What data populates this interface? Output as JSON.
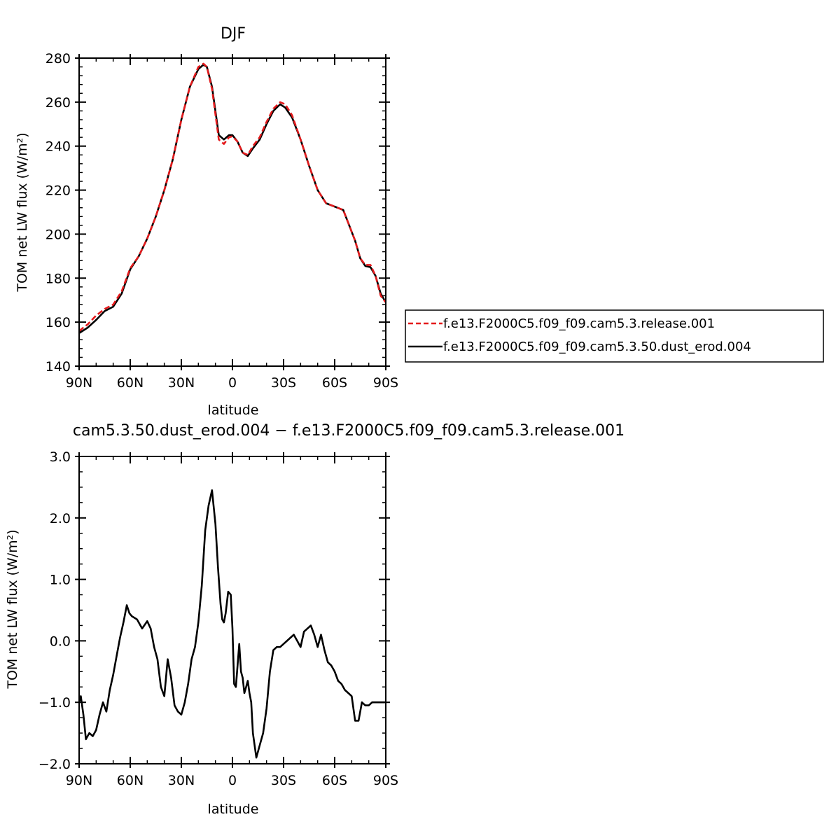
{
  "chart_data": [
    {
      "type": "line",
      "title": "DJF",
      "xlabel": "latitude",
      "ylabel": "TOM net LW flux (W/m²)",
      "ylim": [
        140,
        280
      ],
      "y_ticks": [
        "140",
        "160",
        "180",
        "200",
        "220",
        "240",
        "260",
        "280"
      ],
      "xlim": [
        90,
        -90
      ],
      "x_ticks": [
        {
          "value": 90,
          "label": "90N"
        },
        {
          "value": 60,
          "label": "60N"
        },
        {
          "value": 30,
          "label": "30N"
        },
        {
          "value": 0,
          "label": "0"
        },
        {
          "value": -30,
          "label": "30S"
        },
        {
          "value": -60,
          "label": "60S"
        },
        {
          "value": -90,
          "label": "90S"
        }
      ],
      "legend": "right",
      "x": [
        90,
        85,
        80,
        75,
        70,
        65,
        60,
        55,
        50,
        45,
        40,
        35,
        30,
        25,
        20,
        17,
        15,
        12,
        8,
        5,
        2,
        0,
        -3,
        -6,
        -9,
        -12,
        -16,
        -20,
        -24,
        -28,
        -31,
        -35,
        -40,
        -45,
        -50,
        -55,
        -60,
        -65,
        -68,
        -72,
        -75,
        -78,
        -81,
        -84,
        -87,
        -90
      ],
      "series": [
        {
          "name": "f.e13.F2000C5.f09_f09.cam5.3.release.001",
          "color": "#e41a1c",
          "dash": true,
          "values": [
            156,
            159,
            163,
            166,
            168,
            174,
            184.5,
            190,
            198,
            208,
            220,
            234,
            252,
            267,
            276,
            277.5,
            276,
            266,
            243,
            241,
            244,
            244.5,
            242,
            237,
            236,
            240,
            244,
            251,
            257,
            260,
            259,
            254,
            243,
            231,
            220,
            214,
            212.5,
            211,
            205,
            197,
            189,
            186,
            186,
            181,
            172,
            169
          ]
        },
        {
          "name": "f.e13.F2000C5.f09_f09.cam5.3.50.dust_erod.004",
          "color": "#000000",
          "dash": false,
          "values": [
            155,
            157.5,
            161,
            165,
            167,
            173,
            184,
            190,
            198,
            208,
            220,
            234,
            252,
            267,
            275,
            277,
            276,
            267,
            245,
            243,
            245,
            245,
            242,
            237,
            235.5,
            239,
            243,
            250,
            256,
            259,
            257.5,
            253,
            243,
            231,
            220,
            214,
            212.5,
            211,
            205,
            197,
            189,
            185.5,
            185,
            181,
            173,
            169
          ]
        }
      ]
    },
    {
      "type": "line",
      "title": "cam5.3.50.dust_erod.004 − f.e13.F2000C5.f09_f09.cam5.3.release.001",
      "xlabel": "latitude",
      "ylabel": "TOM net LW flux (W/m²)",
      "ylim": [
        -2.0,
        3.0
      ],
      "y_ticks": [
        "−2.0",
        "−1.0",
        "0.0",
        "1.0",
        "2.0",
        "3.0"
      ],
      "xlim": [
        90,
        -90
      ],
      "x_ticks": [
        {
          "value": 90,
          "label": "90N"
        },
        {
          "value": 60,
          "label": "60N"
        },
        {
          "value": 30,
          "label": "30N"
        },
        {
          "value": 0,
          "label": "0"
        },
        {
          "value": -30,
          "label": "30S"
        },
        {
          "value": -60,
          "label": "60S"
        },
        {
          "value": -90,
          "label": "90S"
        }
      ],
      "x": [
        90,
        89,
        87.5,
        86,
        84,
        82,
        80,
        78,
        76,
        74,
        72,
        70,
        68,
        66,
        64,
        62,
        60.5,
        59,
        56,
        53,
        50,
        48,
        46,
        44,
        42,
        40,
        38,
        36,
        34,
        32,
        30,
        28,
        26,
        24,
        22,
        20,
        18,
        16,
        14,
        12,
        10,
        8.5,
        7,
        6,
        5,
        4,
        2.5,
        1,
        0,
        -1,
        -2,
        -3,
        -4,
        -5,
        -6,
        -7,
        -8,
        -9,
        -10,
        -11,
        -12,
        -14,
        -16,
        -18,
        -20,
        -22,
        -24,
        -26,
        -28,
        -30,
        -32,
        -34,
        -36,
        -38,
        -40,
        -42,
        -44,
        -46,
        -48,
        -50,
        -52,
        -54,
        -56,
        -58,
        -60,
        -62,
        -64,
        -66,
        -68,
        -70,
        -72,
        -74,
        -76,
        -78,
        -80,
        -82,
        -84,
        -85,
        -86,
        -87,
        -88,
        -89,
        -90
      ],
      "series": [
        {
          "name": "",
          "color": "#000000",
          "dash": false,
          "values": [
            -1.0,
            -0.9,
            -1.2,
            -1.6,
            -1.5,
            -1.55,
            -1.45,
            -1.2,
            -1.0,
            -1.15,
            -0.8,
            -0.55,
            -0.25,
            0.05,
            0.3,
            0.58,
            0.45,
            0.4,
            0.35,
            0.2,
            0.32,
            0.2,
            -0.1,
            -0.3,
            -0.75,
            -0.9,
            -0.3,
            -0.6,
            -1.05,
            -1.15,
            -1.2,
            -1.0,
            -0.7,
            -0.3,
            -0.1,
            0.3,
            0.9,
            1.8,
            2.2,
            2.45,
            1.9,
            1.2,
            0.6,
            0.35,
            0.3,
            0.45,
            0.8,
            0.75,
            0.2,
            -0.7,
            -0.75,
            -0.4,
            -0.05,
            -0.5,
            -0.6,
            -0.85,
            -0.75,
            -0.65,
            -0.85,
            -1.0,
            -1.5,
            -1.9,
            -1.7,
            -1.5,
            -1.1,
            -0.5,
            -0.15,
            -0.1,
            -0.1,
            -0.05,
            0.0,
            0.05,
            0.1,
            0.0,
            -0.1,
            0.15,
            0.2,
            0.25,
            0.1,
            -0.1,
            0.1,
            -0.15,
            -0.35,
            -0.4,
            -0.5,
            -0.65,
            -0.7,
            -0.8,
            -0.85,
            -0.9,
            -1.3,
            -1.3,
            -1.0,
            -1.05,
            -1.05,
            -1.0,
            -1.0,
            -1.0,
            -1.0,
            -1.0,
            -1.0,
            -1.0,
            -1.0
          ]
        }
      ]
    }
  ]
}
